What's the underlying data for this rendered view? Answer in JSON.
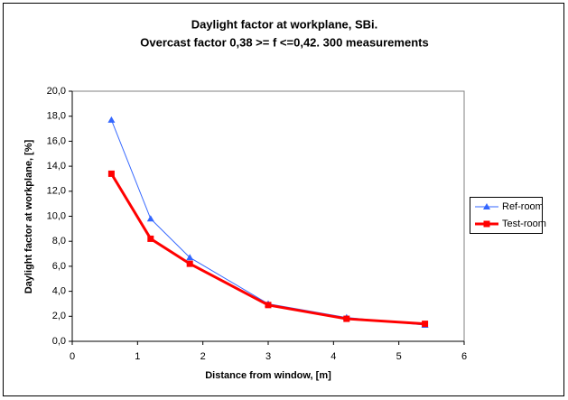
{
  "chart_data": {
    "type": "line",
    "title": "Daylight factor at workplane, SBi.",
    "subtitle": "Overcast factor 0,38 >= f <=0,42. 300 measurements",
    "x_label": "Distance from window, [m]",
    "y_label": "Daylight factor at workplane, [%]",
    "x": [
      0.6,
      1.2,
      1.8,
      3.0,
      4.2,
      5.4
    ],
    "series": [
      {
        "name": "Ref-room",
        "color": "#3366ff",
        "marker": "triangle",
        "values": [
          17.7,
          9.8,
          6.7,
          3.0,
          1.9,
          1.3
        ]
      },
      {
        "name": "Test-room",
        "color": "#ff0000",
        "marker": "square",
        "values": [
          13.4,
          8.2,
          6.2,
          2.9,
          1.8,
          1.4
        ]
      }
    ],
    "xlim": [
      0,
      6
    ],
    "xticks": [
      0,
      1,
      2,
      3,
      4,
      5,
      6
    ],
    "ylim": [
      0,
      20
    ],
    "yticks": [
      {
        "value": 0,
        "label": "0,0"
      },
      {
        "value": 2,
        "label": "2,0"
      },
      {
        "value": 4,
        "label": "4,0"
      },
      {
        "value": 6,
        "label": "6,0"
      },
      {
        "value": 8,
        "label": "8,0"
      },
      {
        "value": 10,
        "label": "10,0"
      },
      {
        "value": 12,
        "label": "12,0"
      },
      {
        "value": 14,
        "label": "14,0"
      },
      {
        "value": 16,
        "label": "16,0"
      },
      {
        "value": 18,
        "label": "18,0"
      },
      {
        "value": 20,
        "label": "20,0"
      }
    ],
    "grid": false,
    "legend": "right"
  }
}
